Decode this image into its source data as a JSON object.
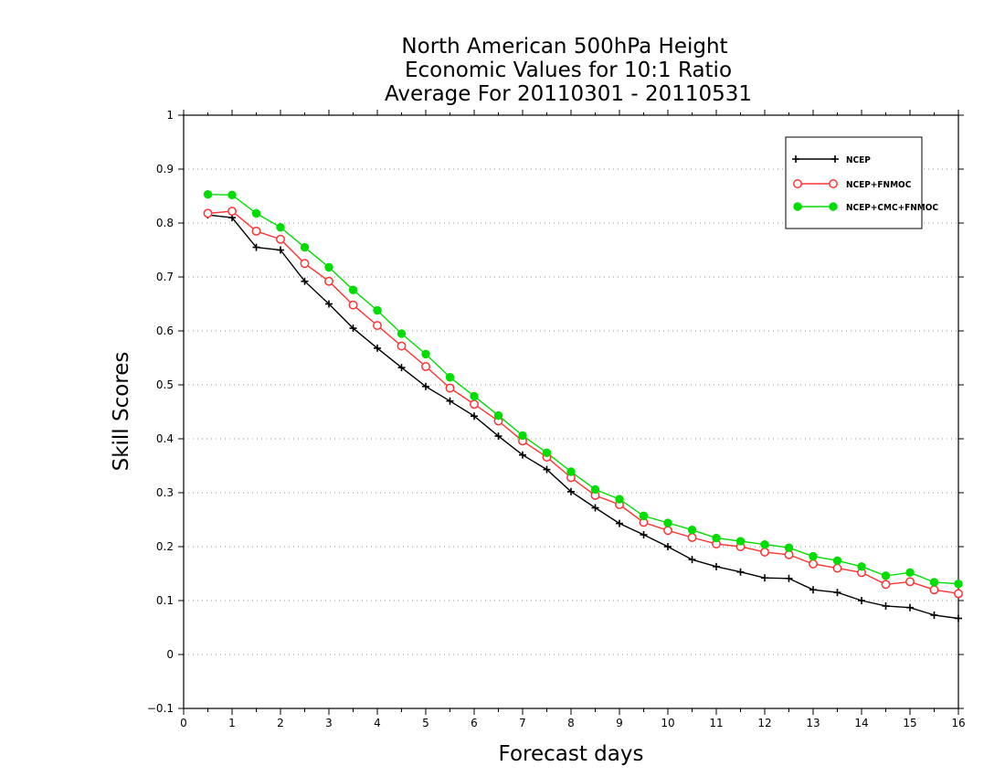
{
  "chart_data": {
    "type": "line",
    "title_lines": [
      "North American 500hPa Height",
      "Economic Values for 10:1 Ratio",
      "Average For 20110301 - 20110531"
    ],
    "xlabel": "Forecast days",
    "ylabel": "Skill Scores",
    "xlim": [
      0,
      16
    ],
    "ylim": [
      -0.1,
      1
    ],
    "x_ticks": [
      "0",
      "1",
      "2",
      "3",
      "4",
      "5",
      "6",
      "7",
      "8",
      "9",
      "10",
      "11",
      "12",
      "13",
      "14",
      "15",
      "16"
    ],
    "y_ticks": [
      "−0.1",
      "0",
      "0.1",
      "0.2",
      "0.3",
      "0.4",
      "0.5",
      "0.6",
      "0.7",
      "0.8",
      "0.9",
      "1"
    ],
    "grid": "horizontal dotted",
    "legend_placement": "top-right",
    "x": [
      0.5,
      1,
      1.5,
      2,
      2.5,
      3,
      3.5,
      4,
      4.5,
      5,
      5.5,
      6,
      6.5,
      7,
      7.5,
      8,
      8.5,
      9,
      9.5,
      10,
      10.5,
      11,
      11.5,
      12,
      12.5,
      13,
      13.5,
      14,
      14.5,
      15,
      15.5,
      16
    ],
    "series": [
      {
        "name": "NCEP",
        "color": "#000000",
        "marker": "plus",
        "values": [
          0.815,
          0.81,
          0.755,
          0.75,
          0.692,
          0.65,
          0.605,
          0.568,
          0.532,
          0.497,
          0.47,
          0.442,
          0.405,
          0.37,
          0.343,
          0.302,
          0.272,
          0.243,
          0.222,
          0.2,
          0.176,
          0.163,
          0.153,
          0.142,
          0.141,
          0.12,
          0.115,
          0.1,
          0.09,
          0.087,
          0.073,
          0.067
        ]
      },
      {
        "name": "NCEP+FNMOC",
        "color": "#ff3333",
        "marker": "open-circle",
        "values": [
          0.818,
          0.822,
          0.785,
          0.77,
          0.725,
          0.692,
          0.648,
          0.61,
          0.572,
          0.534,
          0.494,
          0.464,
          0.433,
          0.396,
          0.366,
          0.328,
          0.295,
          0.278,
          0.245,
          0.23,
          0.217,
          0.205,
          0.2,
          0.19,
          0.185,
          0.168,
          0.16,
          0.152,
          0.13,
          0.135,
          0.12,
          0.113
        ]
      },
      {
        "name": "NCEP+CMC+FNMOC",
        "color": "#00dd00",
        "marker": "filled-circle",
        "values": [
          0.853,
          0.852,
          0.818,
          0.792,
          0.755,
          0.718,
          0.676,
          0.638,
          0.595,
          0.557,
          0.514,
          0.479,
          0.443,
          0.406,
          0.374,
          0.339,
          0.306,
          0.288,
          0.257,
          0.244,
          0.231,
          0.216,
          0.21,
          0.204,
          0.198,
          0.182,
          0.174,
          0.163,
          0.146,
          0.152,
          0.134,
          0.131
        ]
      }
    ]
  }
}
